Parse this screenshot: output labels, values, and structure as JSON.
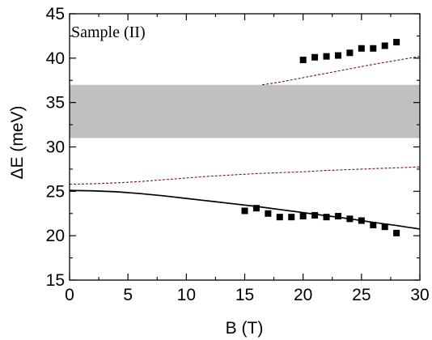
{
  "chart_data": {
    "type": "scatter",
    "annotation": "Sample (II)",
    "xlabel": "B (T)",
    "ylabel": "ΔE (meV)",
    "xlim": [
      0,
      30
    ],
    "ylim": [
      15,
      45
    ],
    "xticks": [
      0,
      5,
      10,
      15,
      20,
      25,
      30
    ],
    "yticks": [
      15,
      20,
      25,
      30,
      35,
      40,
      45
    ],
    "grid": false,
    "legend": "none",
    "shaded_band": {
      "y_from": 31,
      "y_to": 37,
      "color": "#c0c0c0"
    },
    "series": [
      {
        "style": "markers",
        "marker": "square",
        "color": "#000000",
        "x": [
          15,
          16,
          17,
          18,
          19,
          20,
          21,
          22,
          23,
          24,
          25,
          26,
          27,
          28
        ],
        "y": [
          22.8,
          23.1,
          22.5,
          22.1,
          22.1,
          22.2,
          22.3,
          22.1,
          22.2,
          21.9,
          21.7,
          21.2,
          21.0,
          20.3
        ]
      },
      {
        "style": "markers",
        "marker": "square",
        "color": "#000000",
        "x": [
          20,
          21,
          22,
          23,
          24,
          25,
          26,
          27,
          28
        ],
        "y": [
          39.8,
          40.1,
          40.2,
          40.3,
          40.6,
          41.1,
          41.1,
          41.4,
          41.8
        ]
      },
      {
        "style": "solid-line",
        "color": "#000000",
        "x": [
          0,
          2,
          4,
          6,
          8,
          10,
          12,
          14,
          16,
          18,
          20,
          22,
          24,
          26,
          28,
          30
        ],
        "y": [
          25.1,
          25.05,
          24.95,
          24.75,
          24.5,
          24.2,
          23.9,
          23.6,
          23.3,
          22.95,
          22.6,
          22.25,
          21.9,
          21.5,
          21.15,
          20.75
        ]
      },
      {
        "style": "dashed-line",
        "color": "#6b1a1a",
        "x": [
          0,
          2,
          4,
          6,
          8,
          10,
          12,
          14,
          16,
          18,
          20,
          22,
          24,
          26,
          28,
          30
        ],
        "y": [
          25.8,
          25.85,
          25.95,
          26.1,
          26.3,
          26.5,
          26.7,
          26.85,
          27.0,
          27.1,
          27.2,
          27.35,
          27.45,
          27.55,
          27.65,
          27.75
        ]
      },
      {
        "style": "dashed-line",
        "color": "#6b1a1a",
        "x": [
          16.5,
          18,
          20,
          22,
          24,
          26,
          28,
          30
        ],
        "y": [
          37.0,
          37.3,
          37.8,
          38.3,
          38.8,
          39.3,
          39.75,
          40.2
        ]
      }
    ]
  }
}
